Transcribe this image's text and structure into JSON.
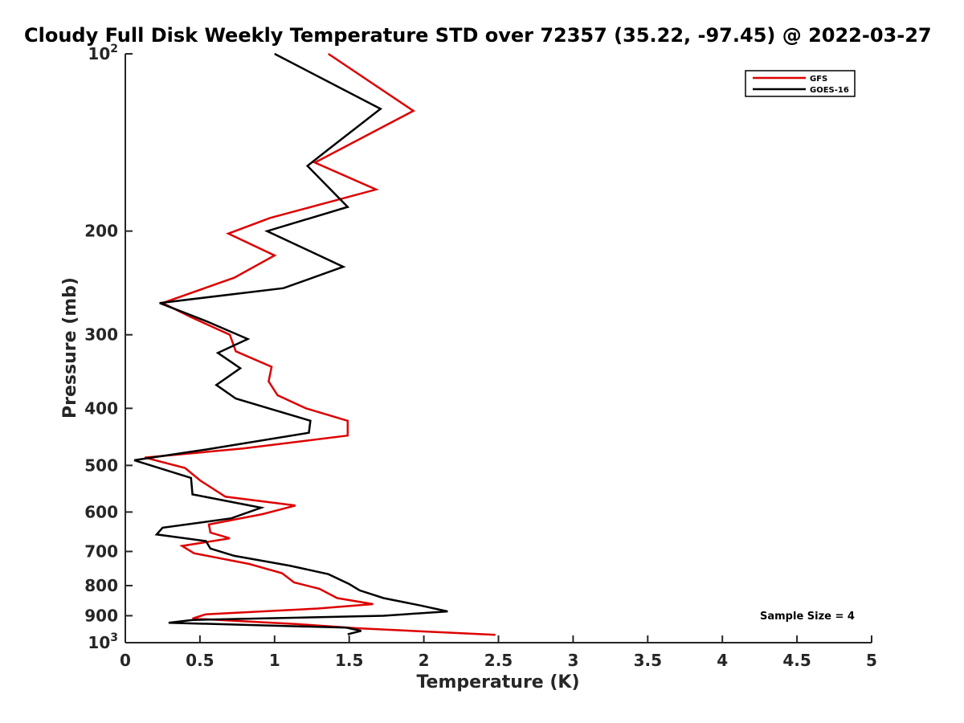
{
  "chart_data": {
    "type": "line",
    "title": "Cloudy Full Disk Weekly Temperature STD over 72357 (35.22, -97.45) @ 2022-03-27",
    "xlabel": "Temperature (K)",
    "ylabel": "Pressure (mb)",
    "xlim": [
      0,
      5
    ],
    "ylim": [
      1000,
      100
    ],
    "y_scale": "log",
    "y_reversed": true,
    "grid": false,
    "legend_position": "top-right",
    "x_ticks": [
      "0",
      "0.5",
      "1",
      "1.5",
      "2",
      "2.5",
      "3",
      "3.5",
      "4",
      "4.5",
      "5"
    ],
    "x_tick_values": [
      0,
      0.5,
      1,
      1.5,
      2,
      2.5,
      3,
      3.5,
      4,
      4.5,
      5
    ],
    "y_ticks": [
      {
        "value": 100,
        "base": "10",
        "exp": "2",
        "label": ""
      },
      {
        "value": 200,
        "label": "200"
      },
      {
        "value": 300,
        "label": "300"
      },
      {
        "value": 400,
        "label": "400"
      },
      {
        "value": 500,
        "label": "500"
      },
      {
        "value": 600,
        "label": "600"
      },
      {
        "value": 700,
        "label": "700"
      },
      {
        "value": 800,
        "label": "800"
      },
      {
        "value": 900,
        "label": "900"
      },
      {
        "value": 1000,
        "base": "10",
        "exp": "3",
        "label": ""
      }
    ],
    "annotation": "Sample Size = 4",
    "series": [
      {
        "name": "GFS",
        "color": "#dd0000",
        "points": [
          [
            1.36,
            100
          ],
          [
            1.93,
            125
          ],
          [
            1.27,
            153
          ],
          [
            1.68,
            170
          ],
          [
            0.97,
            190
          ],
          [
            0.69,
            202
          ],
          [
            1.0,
            220
          ],
          [
            0.73,
            240
          ],
          [
            0.25,
            265
          ],
          [
            0.44,
            280
          ],
          [
            0.7,
            300
          ],
          [
            0.74,
            320
          ],
          [
            0.98,
            340
          ],
          [
            0.96,
            360
          ],
          [
            1.02,
            380
          ],
          [
            1.21,
            400
          ],
          [
            1.49,
            420
          ],
          [
            1.49,
            445
          ],
          [
            0.79,
            468
          ],
          [
            0.13,
            485
          ],
          [
            0.4,
            505
          ],
          [
            0.5,
            530
          ],
          [
            0.67,
            565
          ],
          [
            1.14,
            585
          ],
          [
            0.92,
            605
          ],
          [
            0.56,
            630
          ],
          [
            0.57,
            650
          ],
          [
            0.7,
            665
          ],
          [
            0.38,
            685
          ],
          [
            0.46,
            705
          ],
          [
            0.83,
            735
          ],
          [
            1.05,
            762
          ],
          [
            1.13,
            790
          ],
          [
            1.3,
            810
          ],
          [
            1.42,
            840
          ],
          [
            1.66,
            860
          ],
          [
            1.29,
            875
          ],
          [
            0.54,
            895
          ],
          [
            0.45,
            910
          ],
          [
            1.15,
            930
          ],
          [
            1.55,
            945
          ],
          [
            2.48,
            970
          ]
        ]
      },
      {
        "name": "GOES-16",
        "color": "#000000",
        "points": [
          [
            1.0,
            100
          ],
          [
            1.71,
            124
          ],
          [
            1.35,
            146
          ],
          [
            1.22,
            155
          ],
          [
            1.49,
            182
          ],
          [
            0.95,
            200
          ],
          [
            1.46,
            230
          ],
          [
            1.06,
            250
          ],
          [
            0.23,
            265
          ],
          [
            0.55,
            285
          ],
          [
            0.82,
            305
          ],
          [
            0.62,
            322
          ],
          [
            0.77,
            342
          ],
          [
            0.61,
            365
          ],
          [
            0.74,
            385
          ],
          [
            1.24,
            420
          ],
          [
            1.23,
            440
          ],
          [
            0.54,
            470
          ],
          [
            0.06,
            490
          ],
          [
            0.44,
            525
          ],
          [
            0.45,
            560
          ],
          [
            0.91,
            590
          ],
          [
            0.71,
            615
          ],
          [
            0.25,
            638
          ],
          [
            0.21,
            655
          ],
          [
            0.54,
            672
          ],
          [
            0.57,
            692
          ],
          [
            0.73,
            712
          ],
          [
            1.1,
            740
          ],
          [
            1.36,
            765
          ],
          [
            1.5,
            795
          ],
          [
            1.57,
            815
          ],
          [
            1.73,
            840
          ],
          [
            1.98,
            865
          ],
          [
            2.16,
            885
          ],
          [
            1.73,
            900
          ],
          [
            0.45,
            915
          ],
          [
            0.29,
            925
          ],
          [
            1.48,
            943
          ],
          [
            1.58,
            955
          ],
          [
            1.49,
            968
          ]
        ]
      }
    ]
  }
}
